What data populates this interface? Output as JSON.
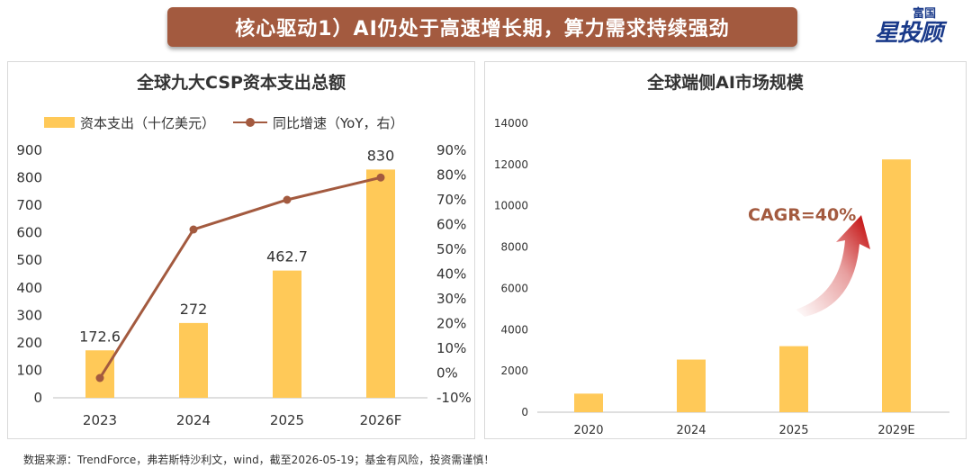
{
  "header": {
    "banner_text": "核心驱动1）AI仍处于高速增长期，算力需求持续强劲",
    "logo_small": "富国",
    "logo_big": "星投顾"
  },
  "colors": {
    "bar": "#ffc958",
    "line": "#a35a3f",
    "banner": "#a35a3f",
    "cagr_text": "#a35a3f"
  },
  "chart_data": [
    {
      "type": "bar",
      "title": "全球九大CSP资本支出总额",
      "categories": [
        "2023",
        "2024",
        "2025",
        "2026F"
      ],
      "series": [
        {
          "name": "资本支出（十亿美元）",
          "type": "bar",
          "axis": "left",
          "values": [
            172.6,
            272,
            462.7,
            830
          ],
          "data_labels": [
            "172.6",
            "272",
            "462.7",
            "830"
          ]
        },
        {
          "name": "同比增速（YoY，右）",
          "type": "line",
          "axis": "right",
          "values": [
            -0.02,
            0.58,
            0.7,
            0.79
          ]
        }
      ],
      "ylim_left": [
        0,
        900
      ],
      "yticks_left": [
        "0",
        "100",
        "200",
        "300",
        "400",
        "500",
        "600",
        "700",
        "800",
        "900"
      ],
      "ylim_right": [
        -0.1,
        0.9
      ],
      "yticks_right": [
        "-10%",
        "0%",
        "10%",
        "20%",
        "30%",
        "40%",
        "50%",
        "60%",
        "70%",
        "80%",
        "90%"
      ],
      "legend_position": "top-left",
      "grid": false
    },
    {
      "type": "bar",
      "title": "全球端侧AI市场规模",
      "categories": [
        "2020",
        "2024",
        "2025",
        "2029E"
      ],
      "series": [
        {
          "values": [
            900,
            2550,
            3200,
            12250
          ]
        }
      ],
      "ylim": [
        0,
        14000
      ],
      "yticks": [
        "0",
        "2000",
        "4000",
        "6000",
        "8000",
        "10000",
        "12000",
        "14000"
      ],
      "annotation": "CAGR=40%",
      "grid": false
    }
  ],
  "footer": {
    "source": "数据来源：TrendForce，弗若斯特沙利文，wind，截至2026-05-19；基金有风险，投资需谨慎！"
  }
}
